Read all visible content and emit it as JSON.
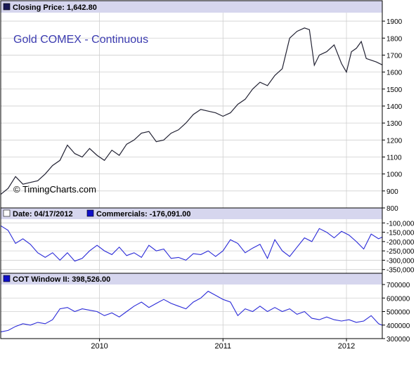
{
  "colors": {
    "price_line": "#222233",
    "commercials_line": "#2a2ad8",
    "cot_line": "#2a2ad8",
    "header_bg": "#d6d6ee",
    "title_text": "#3b3bb0",
    "grid": "#cfcfcf",
    "frame": "#000000",
    "square_dark": "#1a1a55",
    "square_blue": "#1010c8"
  },
  "panels": {
    "price": {
      "header": "Closing Price: 1,642.80",
      "title": "Gold COMEX - Continuous",
      "watermark": "© TimingCharts.com"
    },
    "commercials": {
      "header_date": "Date: 04/17/2012",
      "header_series": "Commercials: -176,091.00"
    },
    "cot": {
      "header": "COT Window II: 398,526.00"
    },
    "x_axis_labels": [
      "2010",
      "2011",
      "2012"
    ]
  },
  "chart_data": [
    {
      "type": "line",
      "series": [
        {
          "name": "Closing Price",
          "x": [
            2009.2,
            2009.26,
            2009.32,
            2009.38,
            2009.44,
            2009.5,
            2009.56,
            2009.62,
            2009.68,
            2009.74,
            2009.8,
            2009.86,
            2009.92,
            2009.98,
            2010.04,
            2010.1,
            2010.16,
            2010.22,
            2010.28,
            2010.34,
            2010.4,
            2010.46,
            2010.52,
            2010.58,
            2010.64,
            2010.7,
            2010.76,
            2010.82,
            2010.88,
            2010.94,
            2011.0,
            2011.06,
            2011.12,
            2011.18,
            2011.24,
            2011.3,
            2011.36,
            2011.42,
            2011.48,
            2011.54,
            2011.6,
            2011.66,
            2011.7,
            2011.74,
            2011.78,
            2011.84,
            2011.9,
            2011.96,
            2012.0,
            2012.04,
            2012.08,
            2012.12,
            2012.16,
            2012.2,
            2012.24,
            2012.29
          ],
          "values": [
            880,
            915,
            985,
            940,
            950,
            960,
            1000,
            1050,
            1080,
            1170,
            1120,
            1100,
            1150,
            1110,
            1080,
            1140,
            1110,
            1175,
            1200,
            1240,
            1250,
            1190,
            1200,
            1240,
            1260,
            1300,
            1350,
            1380,
            1370,
            1360,
            1340,
            1360,
            1410,
            1440,
            1500,
            1540,
            1520,
            1580,
            1620,
            1800,
            1840,
            1860,
            1850,
            1640,
            1700,
            1720,
            1760,
            1650,
            1600,
            1720,
            1740,
            1780,
            1680,
            1670,
            1660,
            1642.8
          ],
          "ylim": [
            800,
            1950
          ],
          "yticks": [
            800,
            900,
            1000,
            1100,
            1200,
            1300,
            1400,
            1500,
            1600,
            1700,
            1800,
            1900
          ]
        }
      ]
    },
    {
      "type": "line",
      "series": [
        {
          "name": "Commercials",
          "x": [
            2009.2,
            2009.26,
            2009.32,
            2009.38,
            2009.44,
            2009.5,
            2009.56,
            2009.62,
            2009.68,
            2009.74,
            2009.8,
            2009.86,
            2009.92,
            2009.98,
            2010.04,
            2010.1,
            2010.16,
            2010.22,
            2010.28,
            2010.34,
            2010.4,
            2010.46,
            2010.52,
            2010.58,
            2010.64,
            2010.7,
            2010.76,
            2010.82,
            2010.88,
            2010.94,
            2011.0,
            2011.06,
            2011.12,
            2011.18,
            2011.24,
            2011.3,
            2011.36,
            2011.42,
            2011.48,
            2011.54,
            2011.6,
            2011.66,
            2011.72,
            2011.78,
            2011.84,
            2011.9,
            2011.96,
            2012.02,
            2012.08,
            2012.14,
            2012.2,
            2012.26,
            2012.29
          ],
          "values": [
            -115000,
            -140000,
            -210000,
            -185000,
            -215000,
            -260000,
            -285000,
            -260000,
            -300000,
            -260000,
            -305000,
            -290000,
            -250000,
            -220000,
            -250000,
            -270000,
            -230000,
            -275000,
            -260000,
            -285000,
            -220000,
            -250000,
            -240000,
            -290000,
            -285000,
            -300000,
            -265000,
            -270000,
            -250000,
            -280000,
            -250000,
            -190000,
            -210000,
            -260000,
            -235000,
            -215000,
            -290000,
            -190000,
            -250000,
            -280000,
            -230000,
            -180000,
            -200000,
            -130000,
            -150000,
            -180000,
            -145000,
            -165000,
            -200000,
            -240000,
            -160000,
            -185000,
            -176091
          ],
          "ylim": [
            -370000,
            -80000
          ],
          "yticks": [
            -100000,
            -150000,
            -200000,
            -250000,
            -300000,
            -350000
          ],
          "ytick_labels": [
            "-100,000",
            "-150,000",
            "-200,000",
            "-250,000",
            "-300,000",
            "-350,000"
          ]
        }
      ]
    },
    {
      "type": "line",
      "series": [
        {
          "name": "COT Window II",
          "x": [
            2009.2,
            2009.26,
            2009.32,
            2009.38,
            2009.44,
            2009.5,
            2009.56,
            2009.62,
            2009.68,
            2009.74,
            2009.8,
            2009.86,
            2009.92,
            2009.98,
            2010.04,
            2010.1,
            2010.16,
            2010.22,
            2010.28,
            2010.34,
            2010.4,
            2010.46,
            2010.52,
            2010.58,
            2010.64,
            2010.7,
            2010.76,
            2010.82,
            2010.88,
            2010.94,
            2011.0,
            2011.06,
            2011.12,
            2011.18,
            2011.24,
            2011.3,
            2011.36,
            2011.42,
            2011.48,
            2011.54,
            2011.6,
            2011.66,
            2011.72,
            2011.78,
            2011.84,
            2011.9,
            2011.96,
            2012.02,
            2012.08,
            2012.14,
            2012.2,
            2012.26,
            2012.29
          ],
          "values": [
            350000,
            360000,
            390000,
            410000,
            400000,
            420000,
            410000,
            440000,
            520000,
            530000,
            500000,
            520000,
            510000,
            500000,
            470000,
            490000,
            460000,
            500000,
            540000,
            570000,
            530000,
            560000,
            590000,
            560000,
            540000,
            520000,
            570000,
            600000,
            650000,
            620000,
            590000,
            570000,
            470000,
            520000,
            500000,
            540000,
            500000,
            530000,
            500000,
            520000,
            480000,
            500000,
            450000,
            440000,
            460000,
            440000,
            430000,
            440000,
            420000,
            430000,
            470000,
            410000,
            398526
          ],
          "ylim": [
            300000,
            700000
          ],
          "yticks": [
            300000,
            400000,
            500000,
            600000,
            700000
          ],
          "ytick_labels": [
            "300000",
            "400000",
            "500000",
            "600000",
            "700000"
          ]
        }
      ]
    }
  ]
}
